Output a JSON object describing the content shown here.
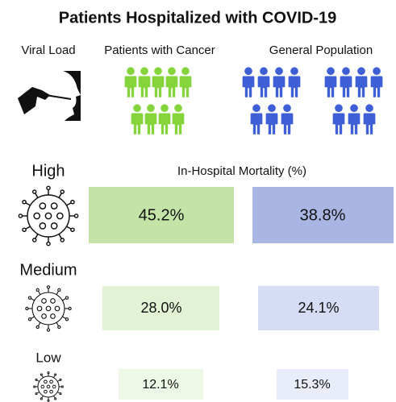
{
  "title": "Patients Hospitalized with COVID-19",
  "columns": {
    "viral_load": "Viral Load",
    "cancer": "Patients with Cancer",
    "general": "General Population"
  },
  "subtitle": "In-Hospital Mortality (%)",
  "rows": [
    {
      "label": "High",
      "cancer": "45.2%",
      "general": "38.8%"
    },
    {
      "label": "Medium",
      "cancer": "28.0%",
      "general": "24.1%"
    },
    {
      "label": "Low",
      "cancer": "12.1%",
      "general": "15.3%"
    }
  ]
}
